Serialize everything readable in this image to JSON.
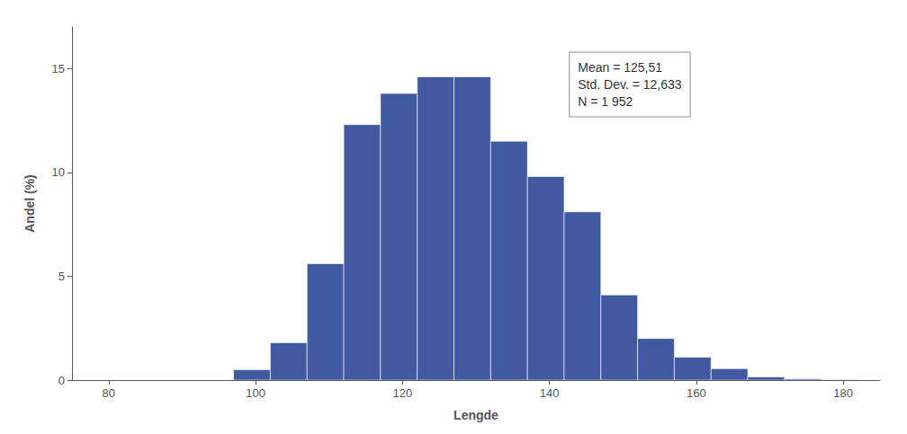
{
  "chart_data": {
    "type": "histogram",
    "xlabel": "Lengde",
    "ylabel": "Andel (%)",
    "bins": [
      97,
      102,
      107,
      112,
      117,
      122,
      127,
      132,
      137,
      142,
      147,
      152,
      157,
      162,
      167,
      172,
      177,
      182
    ],
    "values": [
      0.5,
      1.8,
      5.6,
      12.3,
      13.8,
      14.6,
      14.6,
      11.5,
      9.8,
      8.1,
      4.1,
      2.0,
      1.1,
      0.55,
      0.15,
      0.05,
      0.02
    ],
    "color": "#4059A0",
    "xlim": [
      75,
      185
    ],
    "ylim": [
      0,
      17
    ],
    "xticks": [
      80,
      100,
      120,
      140,
      160,
      180
    ],
    "yticks": [
      0,
      5,
      10,
      15
    ],
    "grid": false,
    "annotation": "Mean = 125,51\nStd. Dev. = 12,633\nN = 1 952"
  }
}
